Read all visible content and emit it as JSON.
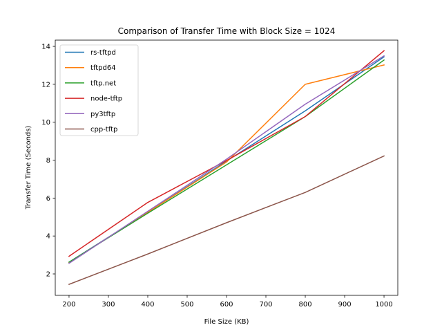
{
  "chart_data": {
    "type": "line",
    "title": "Comparison of Transfer Time with Block Size = 1024",
    "xlabel": "File Size (KB)",
    "ylabel": "Transfer Time (Seconds)",
    "xlim": [
      165,
      1035
    ],
    "ylim": [
      0.87,
      14.33
    ],
    "xticks": [
      200,
      300,
      400,
      500,
      600,
      700,
      800,
      900,
      1000
    ],
    "yticks": [
      2,
      4,
      6,
      8,
      10,
      12,
      14
    ],
    "grid": false,
    "legend_position": "top-left",
    "x": [
      200,
      400,
      600,
      800,
      1000
    ],
    "series": [
      {
        "name": "rs-tftpd",
        "color": "#1f77b4",
        "values": [
          2.62,
          5.25,
          7.95,
          10.6,
          13.45
        ]
      },
      {
        "name": "tftpd64",
        "color": "#ff7f0e",
        "values": [
          2.6,
          5.25,
          7.9,
          12.0,
          13.02
        ]
      },
      {
        "name": "tftp.net",
        "color": "#2ca02c",
        "values": [
          2.62,
          5.2,
          7.75,
          10.3,
          13.28
        ]
      },
      {
        "name": "node-tftp",
        "color": "#d62728",
        "values": [
          2.93,
          5.77,
          7.98,
          10.3,
          13.77
        ]
      },
      {
        "name": "py3tftp",
        "color": "#9467bd",
        "values": [
          2.56,
          5.3,
          8.05,
          10.95,
          13.5
        ]
      },
      {
        "name": "cpp-tftp",
        "color": "#8c564b",
        "values": [
          1.45,
          3.05,
          4.7,
          6.3,
          8.22
        ]
      }
    ]
  }
}
